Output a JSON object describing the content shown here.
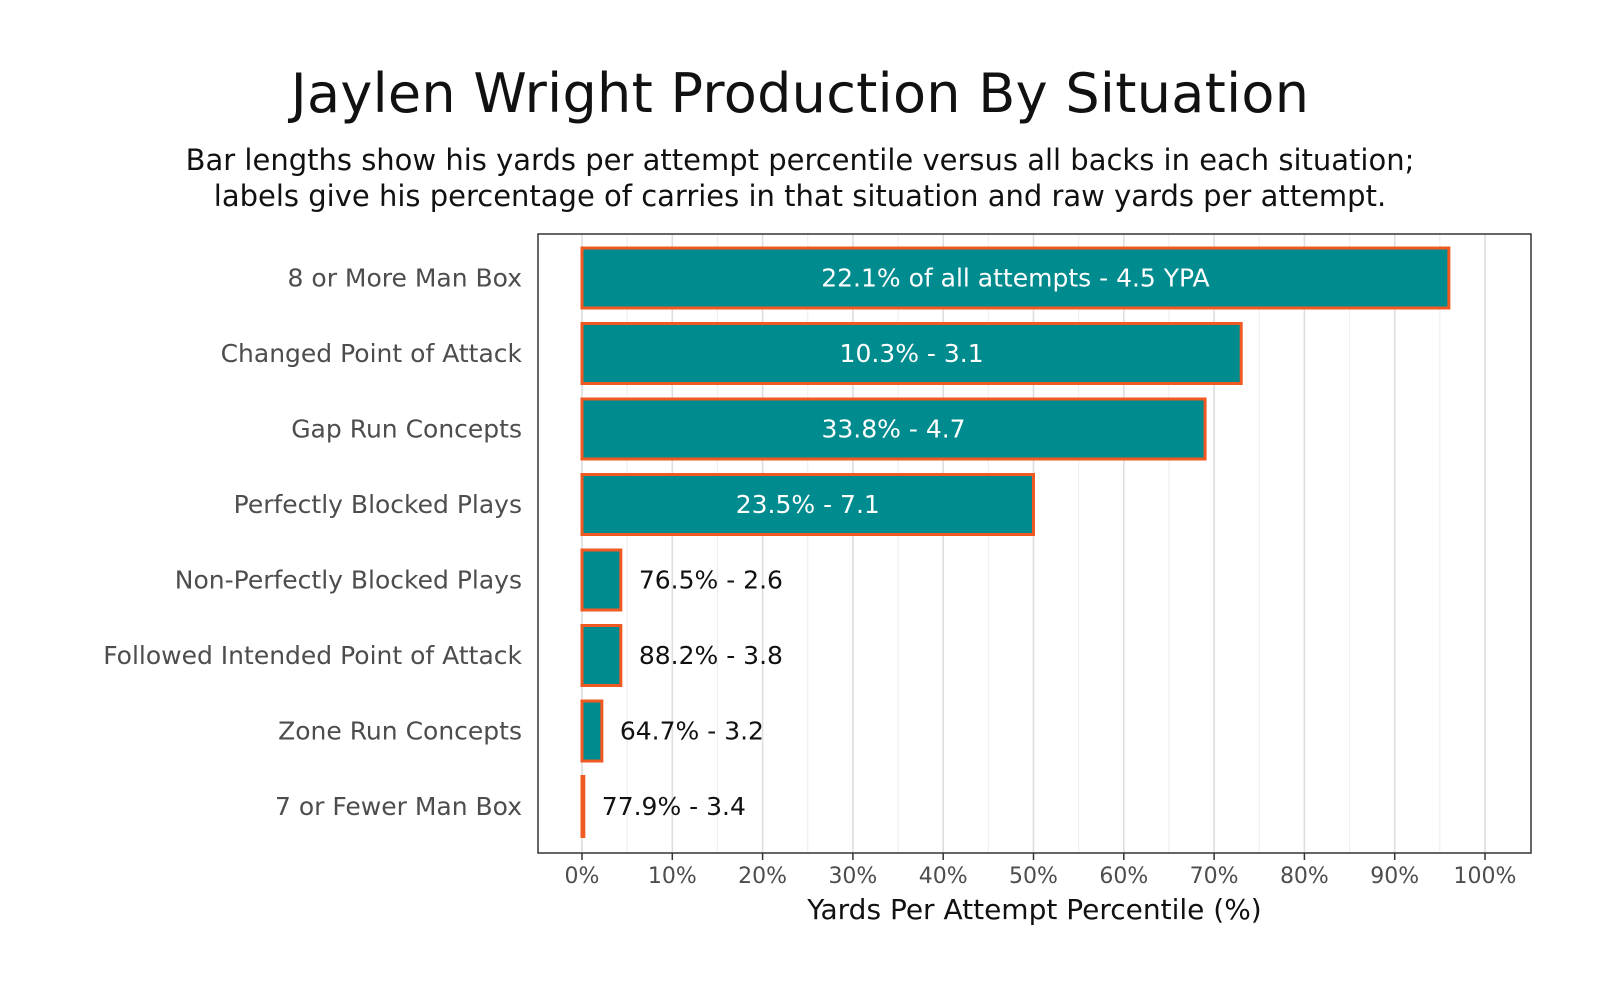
{
  "chart_data": {
    "type": "bar",
    "orientation": "horizontal",
    "title": "Jaylen Wright Production By Situation",
    "subtitle": [
      "Bar lengths show his yards per attempt percentile versus all backs in each situation;",
      "labels give his percentage of carries in that situation and raw yards per attempt."
    ],
    "xlabel": "Yards Per Attempt Percentile (%)",
    "ylabel": "",
    "xlim": [
      0,
      100
    ],
    "x_ticks": [
      "0%",
      "10%",
      "20%",
      "30%",
      "40%",
      "50%",
      "60%",
      "70%",
      "80%",
      "90%",
      "100%"
    ],
    "grid": true,
    "legend": "none",
    "colors": {
      "bar_fill": "#008b8f",
      "bar_outline": "#f05a22",
      "grid_major": "#dedede",
      "grid_minor": "#efefef",
      "panel_border": "#333333",
      "label_inside": "#ffffff",
      "label_outside": "#111111"
    },
    "categories": [
      "8 or More Man Box",
      "Changed Point of Attack",
      "Gap Run Concepts",
      "Perfectly Blocked Plays",
      "Non-Perfectly Blocked Plays",
      "Followed Intended Point of Attack",
      "Zone Run Concepts",
      "7 or Fewer Man Box"
    ],
    "values": [
      96,
      73,
      69,
      50,
      4.3,
      4.3,
      2.2,
      0.2
    ],
    "labels": [
      "22.1% of all attempts - 4.5 YPA",
      "10.3% - 3.1",
      "33.8% - 4.7",
      "23.5% - 7.1",
      "76.5% - 2.6",
      "88.2% - 3.8",
      "64.7% - 3.2",
      "77.9% - 3.4"
    ]
  }
}
